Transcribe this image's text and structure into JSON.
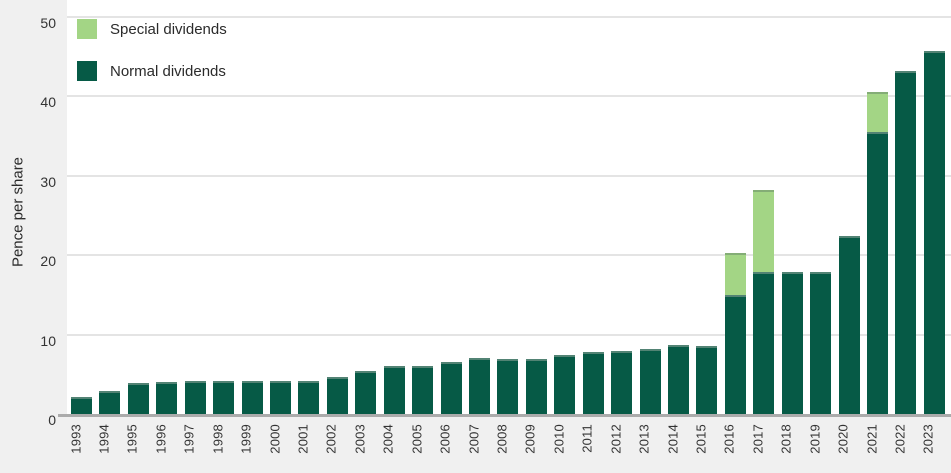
{
  "colors": {
    "normal_dividend": "#065a46",
    "special_dividend": "#a3d585",
    "background": "#f0f0f0",
    "plot_background": "#ffffff",
    "gridline": "#e4e4e4",
    "axis_line": "#ababab",
    "text": "#333333"
  },
  "chart_data": {
    "type": "bar",
    "stacked": true,
    "title": "",
    "xlabel": "",
    "ylabel": "Pence per share",
    "ylim": [
      0,
      50
    ],
    "yticks": [
      "0",
      "10",
      "20",
      "30",
      "40",
      "50"
    ],
    "grid": "horizontal",
    "legend_position": "top-left-inside",
    "categories": [
      "1993",
      "1994",
      "1995",
      "1996",
      "1997",
      "1998",
      "1999",
      "2000",
      "2001",
      "2002",
      "2003",
      "2004",
      "2005",
      "2006",
      "2007",
      "2008",
      "2009",
      "2010",
      "2011",
      "2012",
      "2013",
      "2014",
      "2015",
      "2016",
      "2017",
      "2018",
      "2019",
      "2020",
      "2021",
      "2022",
      "2023"
    ],
    "series": [
      {
        "name": "Normal dividends",
        "color": "#065a46",
        "values": [
          2.2,
          2.9,
          3.9,
          4.0,
          4.2,
          4.2,
          4.2,
          4.1,
          4.1,
          4.7,
          5.4,
          6.0,
          6.1,
          6.5,
          7.0,
          6.9,
          6.9,
          7.4,
          7.8,
          7.9,
          8.2,
          8.7,
          8.6,
          15.0,
          17.9,
          17.9,
          17.9,
          22.4,
          35.5,
          43.2,
          45.7
        ]
      },
      {
        "name": "Special dividends",
        "color": "#a3d585",
        "values": [
          0,
          0,
          0,
          0,
          0,
          0,
          0,
          0,
          0,
          0,
          0,
          0,
          0,
          0,
          0,
          0,
          0,
          0,
          0,
          0,
          0,
          0,
          0,
          5.3,
          10.3,
          0,
          0,
          0,
          5.1,
          0,
          0
        ]
      }
    ],
    "legend": {
      "items": [
        {
          "label": "Special dividends",
          "color": "#a3d585"
        },
        {
          "label": "Normal dividends",
          "color": "#065a46"
        }
      ]
    }
  }
}
